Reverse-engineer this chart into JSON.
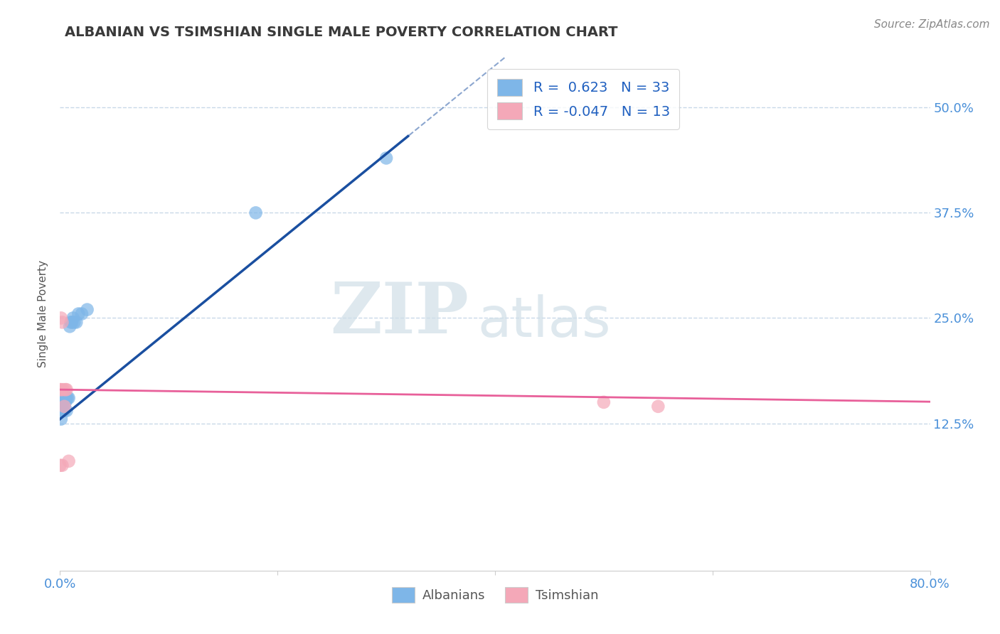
{
  "title": "ALBANIAN VS TSIMSHIAN SINGLE MALE POVERTY CORRELATION CHART",
  "source_text": "Source: ZipAtlas.com",
  "ylabel": "Single Male Poverty",
  "xlim": [
    0.0,
    0.8
  ],
  "ylim": [
    -0.05,
    0.56
  ],
  "xtick_positions": [
    0.0,
    0.2,
    0.4,
    0.6,
    0.8
  ],
  "xticklabels": [
    "0.0%",
    "",
    "",
    "",
    "80.0%"
  ],
  "ytick_positions": [
    0.125,
    0.25,
    0.375,
    0.5
  ],
  "ytick_labels": [
    "12.5%",
    "25.0%",
    "37.5%",
    "50.0%"
  ],
  "albanian_R": 0.623,
  "albanian_N": 33,
  "tsimshian_R": -0.047,
  "tsimshian_N": 13,
  "albanian_color": "#7eb6e8",
  "tsimshian_color": "#f4a8b8",
  "albanian_line_color": "#1a4fa0",
  "tsimshian_line_color": "#e8609a",
  "albanian_x": [
    0.0,
    0.0,
    0.0,
    0.0,
    0.001,
    0.001,
    0.001,
    0.001,
    0.002,
    0.002,
    0.002,
    0.003,
    0.003,
    0.003,
    0.004,
    0.004,
    0.005,
    0.005,
    0.006,
    0.006,
    0.007,
    0.008,
    0.009,
    0.01,
    0.011,
    0.012,
    0.013,
    0.015,
    0.017,
    0.02,
    0.025,
    0.18,
    0.3
  ],
  "albanian_y": [
    0.16,
    0.155,
    0.145,
    0.14,
    0.155,
    0.15,
    0.14,
    0.13,
    0.155,
    0.15,
    0.14,
    0.155,
    0.15,
    0.14,
    0.155,
    0.14,
    0.155,
    0.15,
    0.155,
    0.14,
    0.155,
    0.155,
    0.24,
    0.245,
    0.245,
    0.25,
    0.245,
    0.245,
    0.255,
    0.255,
    0.26,
    0.375,
    0.44
  ],
  "tsimshian_x": [
    0.0,
    0.0,
    0.001,
    0.001,
    0.002,
    0.002,
    0.003,
    0.004,
    0.005,
    0.006,
    0.008,
    0.5,
    0.55
  ],
  "tsimshian_y": [
    0.165,
    0.075,
    0.165,
    0.25,
    0.245,
    0.075,
    0.165,
    0.145,
    0.165,
    0.165,
    0.08,
    0.15,
    0.145
  ],
  "albanian_line_x": [
    0.0,
    0.3
  ],
  "albanian_line_y_start": 0.13,
  "albanian_line_slope": 1.05,
  "tsimshian_line_x": [
    0.0,
    0.8
  ],
  "tsimshian_line_y_start": 0.165,
  "tsimshian_line_slope": -0.018,
  "watermark_zip": "ZIP",
  "watermark_atlas": "atlas",
  "background_color": "#ffffff",
  "grid_color": "#c8d8e8",
  "title_color": "#3a3a3a",
  "axis_label_color": "#555555",
  "tick_label_color": "#4a90d9",
  "legend_label_color": "#2060c0",
  "source_color": "#888888"
}
